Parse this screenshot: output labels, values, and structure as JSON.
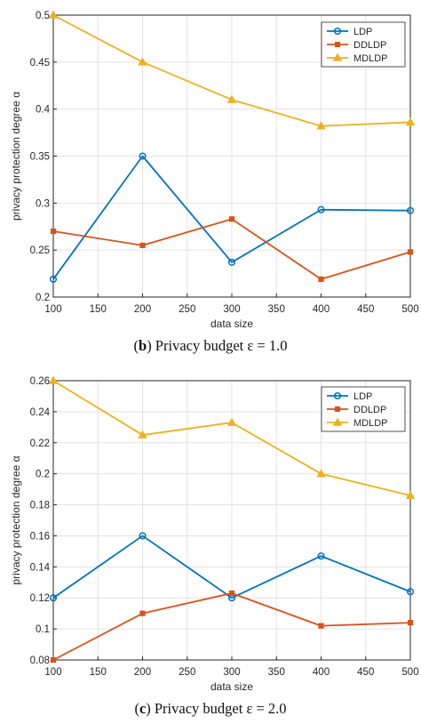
{
  "colors": {
    "LDP": "#0072BD",
    "DDLDP": "#D95319",
    "MDLDP": "#EDB120",
    "grid": "#e3e3e3",
    "axis": "#262626"
  },
  "chart_data": [
    {
      "type": "line",
      "xlabel": "data size",
      "ylabel": "privacy protection degree α",
      "caption": {
        "panel": "b",
        "text": ") Privacy budget ε = 1.0"
      },
      "x": [
        100,
        200,
        300,
        400,
        500
      ],
      "xlim": [
        100,
        500
      ],
      "ylim": [
        0.2,
        0.5
      ],
      "xticks": [
        100,
        150,
        200,
        250,
        300,
        350,
        400,
        450,
        500
      ],
      "yticks": [
        0.2,
        0.25,
        0.3,
        0.35,
        0.4,
        0.45,
        0.5
      ],
      "ytick_labels": [
        "0.2",
        "0.25",
        "0.3",
        "0.35",
        "0.4",
        "0.45",
        "0.5"
      ],
      "grid": true,
      "legend_position": "top-right",
      "series": [
        {
          "name": "LDP",
          "marker": "circle",
          "values": [
            0.219,
            0.35,
            0.237,
            0.293,
            0.292
          ]
        },
        {
          "name": "DDLDP",
          "marker": "square",
          "values": [
            0.27,
            0.255,
            0.283,
            0.219,
            0.248
          ]
        },
        {
          "name": "MDLDP",
          "marker": "triangle",
          "values": [
            0.5,
            0.45,
            0.41,
            0.382,
            0.386
          ]
        }
      ]
    },
    {
      "type": "line",
      "xlabel": "data size",
      "ylabel": "privacy protection degree α",
      "caption": {
        "panel": "c",
        "text": ") Privacy budget ε = 2.0"
      },
      "x": [
        100,
        200,
        300,
        400,
        500
      ],
      "xlim": [
        100,
        500
      ],
      "ylim": [
        0.08,
        0.26
      ],
      "xticks": [
        100,
        150,
        200,
        250,
        300,
        350,
        400,
        450,
        500
      ],
      "yticks": [
        0.08,
        0.1,
        0.12,
        0.14,
        0.16,
        0.18,
        0.2,
        0.22,
        0.24,
        0.26
      ],
      "ytick_labels": [
        "0.08",
        "0.1",
        "0.12",
        "0.14",
        "0.16",
        "0.18",
        "0.2",
        "0.22",
        "0.24",
        "0.26"
      ],
      "grid": true,
      "legend_position": "top-right",
      "series": [
        {
          "name": "LDP",
          "marker": "circle",
          "values": [
            0.12,
            0.16,
            0.12,
            0.147,
            0.124
          ]
        },
        {
          "name": "DDLDP",
          "marker": "square",
          "values": [
            0.08,
            0.11,
            0.123,
            0.102,
            0.104
          ]
        },
        {
          "name": "MDLDP",
          "marker": "triangle",
          "values": [
            0.26,
            0.225,
            0.233,
            0.2,
            0.186
          ]
        }
      ]
    }
  ]
}
